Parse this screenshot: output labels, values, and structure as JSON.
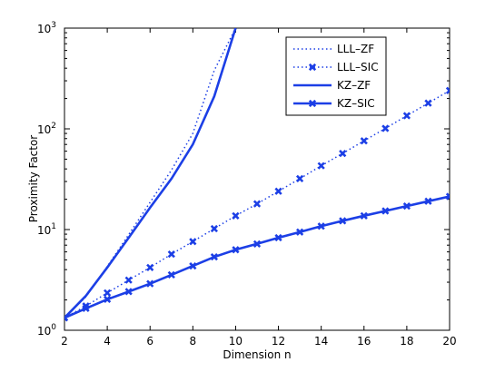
{
  "chart_data": {
    "type": "line",
    "title": "",
    "xlabel": "Dimension n",
    "ylabel": "Proximity Factor",
    "xlim": [
      2,
      20
    ],
    "ylim": [
      1,
      1000
    ],
    "yscale": "log",
    "grid": false,
    "legend_position": "top-right",
    "x_ticks": [
      "2",
      "4",
      "6",
      "8",
      "10",
      "12",
      "14",
      "16",
      "18",
      "20"
    ],
    "y_ticks": [
      {
        "base": "10",
        "exp": "0",
        "value": 1
      },
      {
        "base": "10",
        "exp": "1",
        "value": 10
      },
      {
        "base": "10",
        "exp": "2",
        "value": 100
      },
      {
        "base": "10",
        "exp": "3",
        "value": 1000
      }
    ],
    "series": [
      {
        "name": "LLL–ZF",
        "style": "dotted",
        "marker": "none",
        "color": "#1c3fe6",
        "x": [
          2,
          3,
          4,
          5,
          6,
          7,
          8,
          9,
          10
        ],
        "y": [
          1.33,
          2.15,
          4.3,
          8.9,
          18.6,
          39,
          90,
          380,
          1000
        ]
      },
      {
        "name": "LLL–SIC",
        "style": "dotted",
        "marker": "x",
        "color": "#1c3fe6",
        "x": [
          2,
          3,
          4,
          5,
          6,
          7,
          8,
          9,
          10,
          11,
          12,
          13,
          14,
          15,
          16,
          17,
          18,
          19,
          20
        ],
        "y": [
          1.33,
          1.74,
          2.35,
          3.15,
          4.2,
          5.7,
          7.6,
          10.2,
          13.7,
          18,
          24,
          32,
          43,
          57,
          76,
          101,
          135,
          180,
          240
        ]
      },
      {
        "name": "KZ–ZF",
        "style": "solid",
        "marker": "none",
        "color": "#1c3fe6",
        "x": [
          2,
          3,
          4,
          5,
          6,
          7,
          8,
          9,
          10
        ],
        "y": [
          1.33,
          2.2,
          4.2,
          8.3,
          16.5,
          32,
          70,
          210,
          1000
        ]
      },
      {
        "name": "KZ–SIC",
        "style": "solid",
        "marker": "x",
        "color": "#1c3fe6",
        "x": [
          2,
          3,
          4,
          5,
          6,
          7,
          8,
          9,
          10,
          11,
          12,
          13,
          14,
          15,
          16,
          17,
          18,
          19,
          20
        ],
        "y": [
          1.33,
          1.65,
          2.03,
          2.42,
          2.9,
          3.55,
          4.35,
          5.35,
          6.3,
          7.2,
          8.3,
          9.45,
          10.8,
          12.2,
          13.7,
          15.3,
          17.1,
          19.1,
          21.3
        ]
      }
    ]
  }
}
